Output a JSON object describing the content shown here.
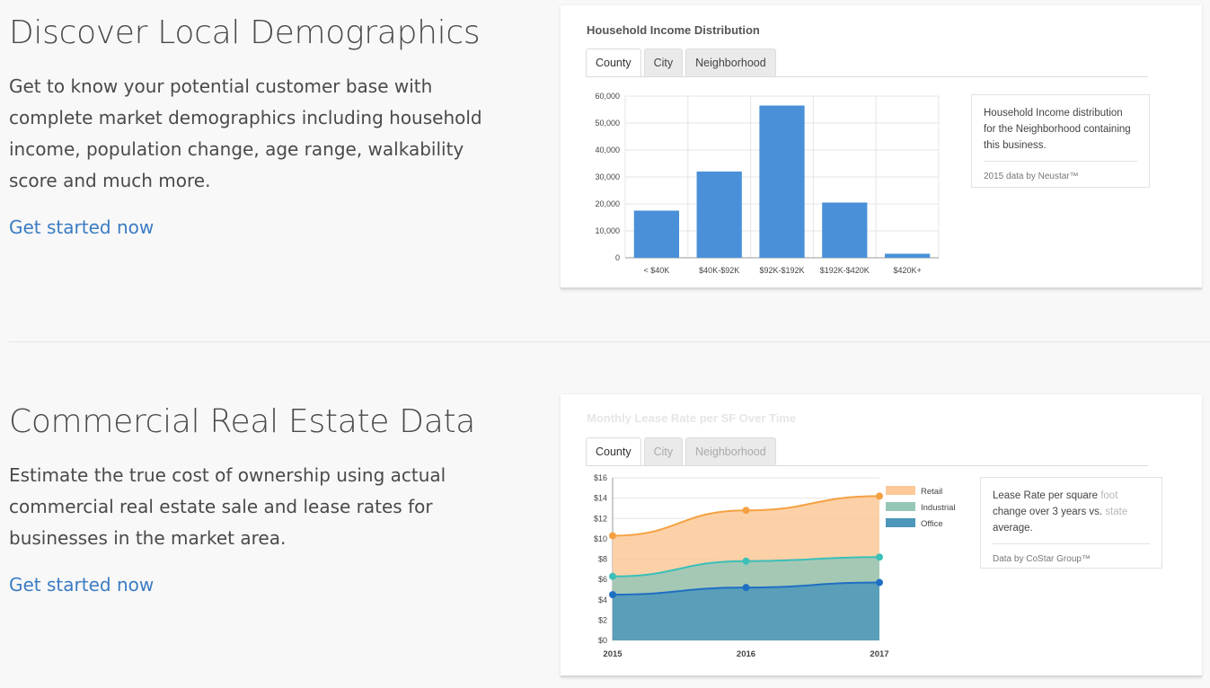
{
  "sections": [
    {
      "heading": "Discover Local Demographics",
      "description": "Get to know your potential customer base with complete market demographics including household income, population change, age range, walkability score and much more.",
      "cta": "Get started now",
      "card": {
        "title": "Household Income Distribution",
        "tabs": [
          "County",
          "City",
          "Neighborhood"
        ],
        "active_tab": "County",
        "info": {
          "text": "Household Income distribution for the Neighborhood containing this business.",
          "source": "2015 data by Neustar™"
        }
      }
    },
    {
      "heading": "Commercial Real Estate Data",
      "description": "Estimate the true cost of ownership using actual commercial real estate sale and lease rates for businesses in the market area.",
      "cta": "Get started now",
      "card": {
        "title": "Monthly Lease Rate per SF Over Time",
        "tabs": [
          "County",
          "City",
          "Neighborhood"
        ],
        "active_tab": "County",
        "info": {
          "text_main": "Lease Rate per square",
          "text_fade_1": "foot",
          "text_line2_main": "change over 3 years vs.",
          "text_fade_2": "state",
          "text_line3": "average.",
          "source": "Data by CoStar Group™"
        }
      }
    }
  ],
  "chart_data": [
    {
      "type": "bar",
      "title": "Household Income Distribution",
      "categories": [
        "< $40K",
        "$40K-$92K",
        "$92K-$192K",
        "$192K-$420K",
        "$420K+"
      ],
      "values": [
        17500,
        32000,
        56500,
        20500,
        1500
      ],
      "ylim": [
        0,
        60000
      ],
      "yticks": [
        "0",
        "10,000",
        "20,000",
        "30,000",
        "40,000",
        "50,000",
        "60,000"
      ],
      "grid": true,
      "bar_color": "#4a90d9"
    },
    {
      "type": "area",
      "title": "Monthly Lease Rate per SF Over Time",
      "x": [
        "2015",
        "2016",
        "2017"
      ],
      "series": [
        {
          "name": "Retail",
          "values": [
            10.3,
            12.8,
            14.2
          ],
          "fill": "#fdc999",
          "stroke": "#f5a142"
        },
        {
          "name": "Industrial",
          "values": [
            6.3,
            7.8,
            8.2
          ],
          "fill": "#95c7b6",
          "stroke": "#3bbfb8"
        },
        {
          "name": "Office",
          "values": [
            4.5,
            5.2,
            5.7
          ],
          "fill": "#4c97ba",
          "stroke": "#1f6fc4"
        }
      ],
      "ylim": [
        0,
        16
      ],
      "yticks": [
        "$0",
        "$2",
        "$4",
        "$6",
        "$8",
        "$10",
        "$12",
        "$14",
        "$16"
      ],
      "legend": "right",
      "grid": true
    }
  ]
}
